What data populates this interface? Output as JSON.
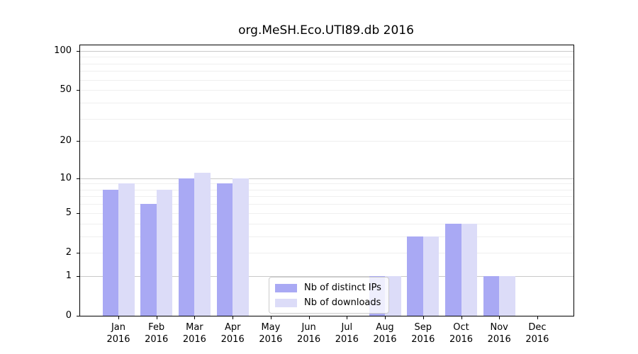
{
  "figure": {
    "title": "org.MeSH.Eco.UTI89.db 2016"
  },
  "chart_data": {
    "type": "bar",
    "title": "org.MeSH.Eco.UTI89.db 2016",
    "categories": [
      "Jan",
      "Feb",
      "Mar",
      "Apr",
      "May",
      "Jun",
      "Jul",
      "Aug",
      "Sep",
      "Oct",
      "Nov",
      "Dec"
    ],
    "x_tick_second_line": "2016",
    "series": [
      {
        "name": "Nb of distinct IPs",
        "color": "#a9a9f4",
        "values": [
          8,
          6,
          10,
          9,
          0,
          0,
          0,
          1,
          3,
          4,
          1,
          0
        ]
      },
      {
        "name": "Nb of downloads",
        "color": "#dcdcf8",
        "values": [
          9,
          8,
          11,
          10,
          0,
          0,
          0,
          1,
          3,
          4,
          1,
          0
        ]
      }
    ],
    "xlabel": "",
    "ylabel": "",
    "yscale": "log1p",
    "ylim": [
      0,
      110
    ],
    "y_ticks": [
      0,
      1,
      2,
      5,
      10,
      20,
      50,
      100
    ],
    "gridlines": {
      "major": [
        1,
        10,
        100
      ],
      "minor": [
        2,
        3,
        4,
        5,
        6,
        7,
        8,
        9,
        20,
        30,
        40,
        50,
        60,
        70,
        80,
        90
      ]
    },
    "grid": true,
    "legend_position": "lower center",
    "colors": {
      "major_grid": "#c9c9c9",
      "minor_grid": "#efefef",
      "axis": "#000000",
      "legend_border": "#cccccc"
    }
  }
}
